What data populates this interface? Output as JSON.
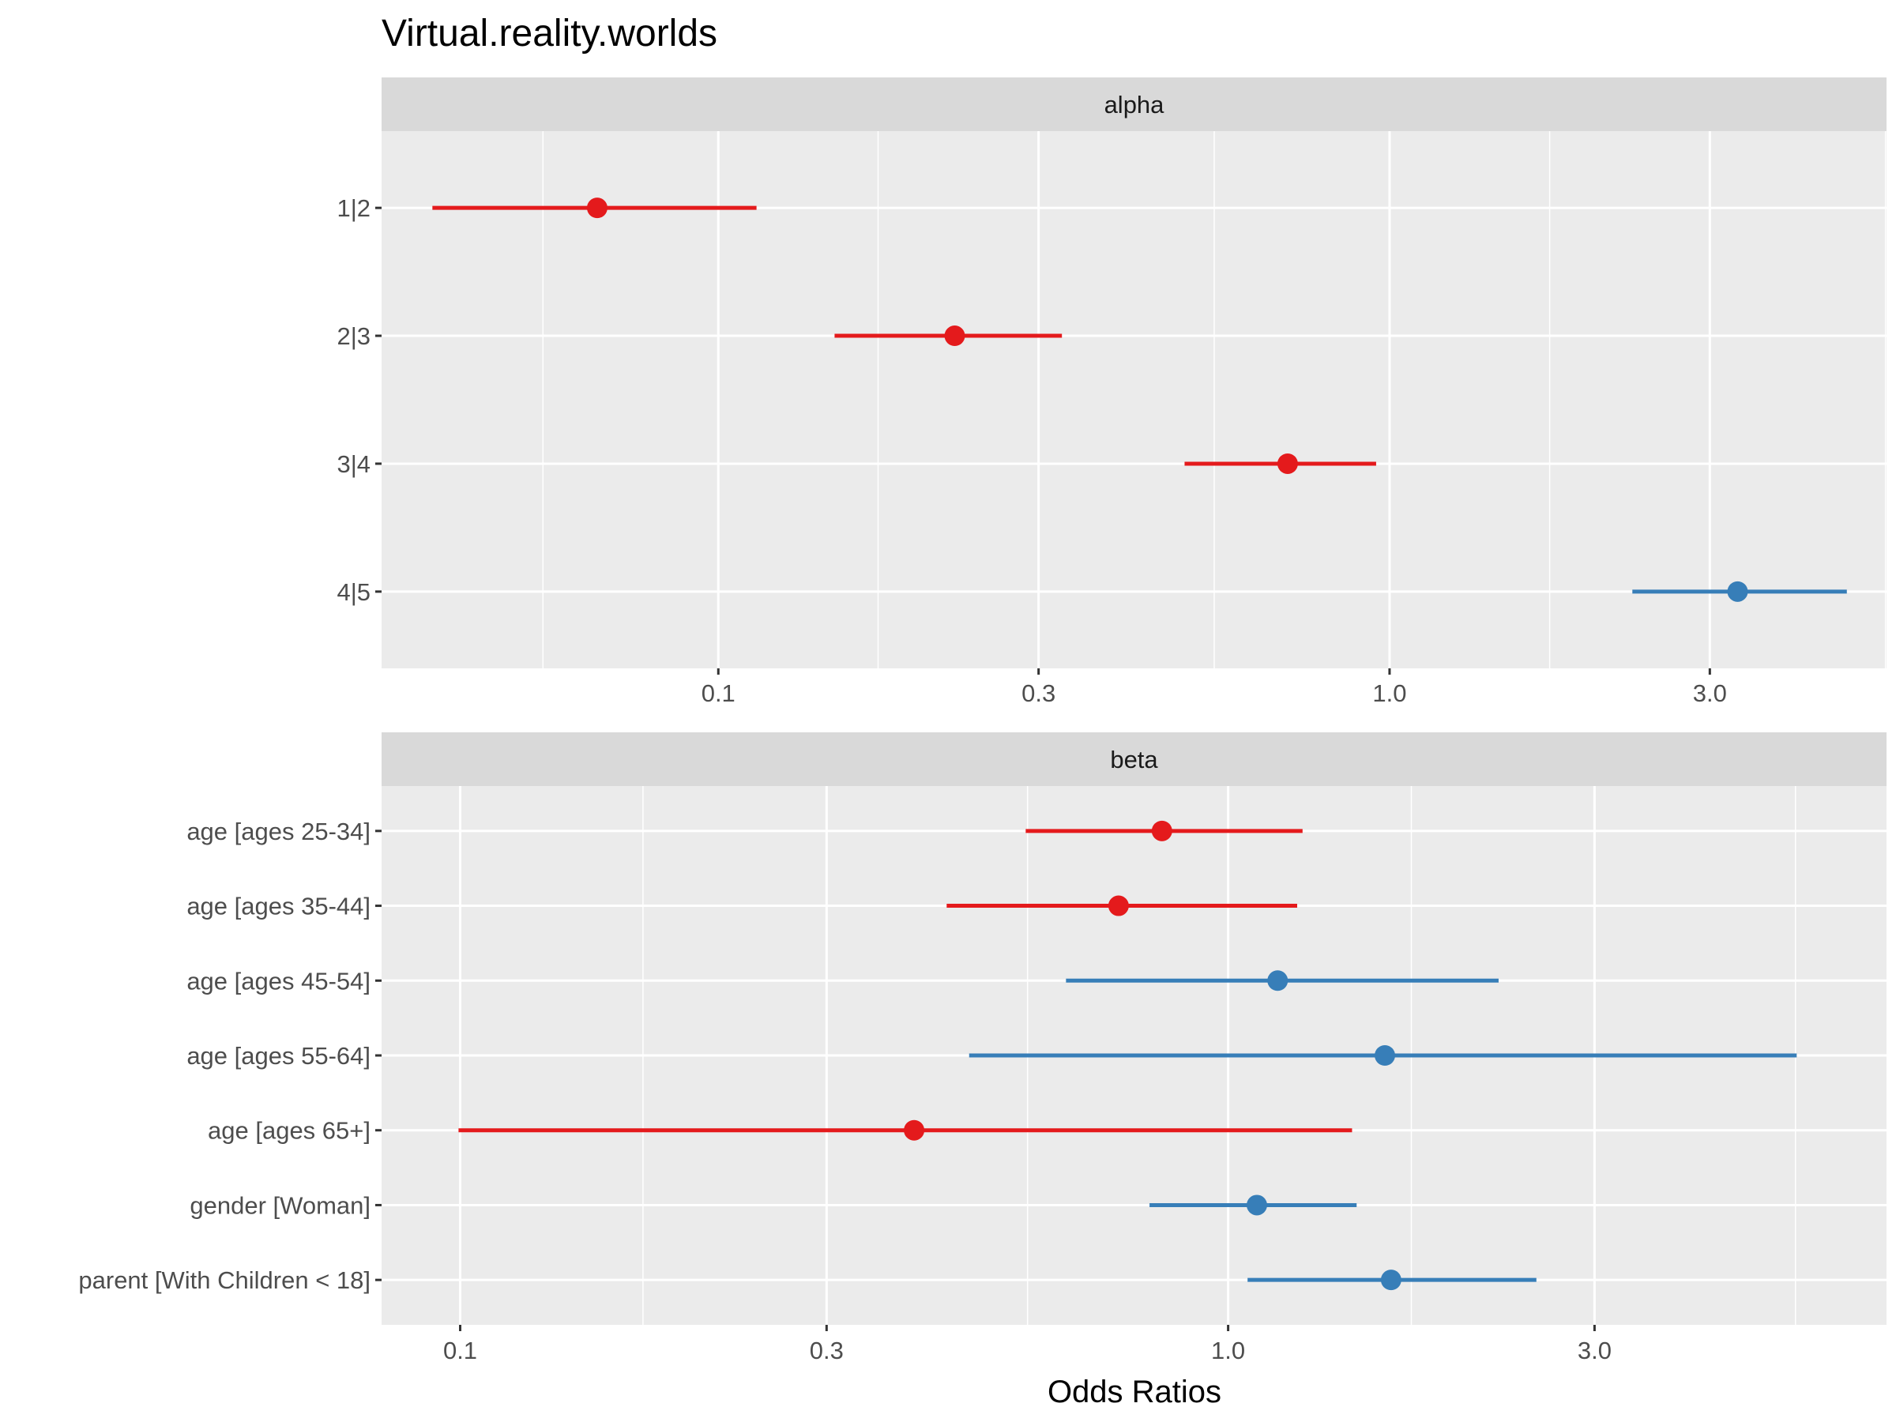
{
  "chart_data": {
    "type": "scatter",
    "subtype": "forest-plot",
    "title": "Virtual.reality.worlds",
    "xlabel": "Odds Ratios",
    "ylabel": "",
    "x_scale": "log10",
    "grid": true,
    "legend": "none",
    "colors": {
      "below_one": "#E41A1C",
      "above_one": "#377EB8"
    },
    "panels": [
      {
        "name": "alpha",
        "xlim": [
          0.0315,
          5.5
        ],
        "xticks": [
          0.1,
          0.3,
          1.0,
          3.0
        ],
        "xtick_labels": [
          "0.1",
          "0.3",
          "1.0",
          "3.0"
        ],
        "x_minor_grid": [
          0.0548,
          0.173,
          0.548,
          1.732,
          5.48
        ],
        "terms": [
          {
            "label": "1|2",
            "estimate": 0.066,
            "conf_low": 0.0375,
            "conf_high": 0.114
          },
          {
            "label": "2|3",
            "estimate": 0.225,
            "conf_low": 0.149,
            "conf_high": 0.325
          },
          {
            "label": "3|4",
            "estimate": 0.705,
            "conf_low": 0.495,
            "conf_high": 0.955
          },
          {
            "label": "4|5",
            "estimate": 3.3,
            "conf_low": 2.3,
            "conf_high": 4.8
          }
        ]
      },
      {
        "name": "beta",
        "xlim": [
          0.079,
          7.2
        ],
        "xticks": [
          0.1,
          0.3,
          1.0,
          3.0
        ],
        "xtick_labels": [
          "0.1",
          "0.3",
          "1.0",
          "3.0"
        ],
        "x_minor_grid": [
          0.173,
          0.548,
          1.732,
          5.48
        ],
        "terms": [
          {
            "label": "age [ages 25-34]",
            "estimate": 0.82,
            "conf_low": 0.545,
            "conf_high": 1.25
          },
          {
            "label": "age [ages 35-44]",
            "estimate": 0.72,
            "conf_low": 0.43,
            "conf_high": 1.23
          },
          {
            "label": "age [ages 45-54]",
            "estimate": 1.16,
            "conf_low": 0.615,
            "conf_high": 2.25
          },
          {
            "label": "age [ages 55-64]",
            "estimate": 1.6,
            "conf_low": 0.46,
            "conf_high": 5.5
          },
          {
            "label": "age [ages 65+]",
            "estimate": 0.39,
            "conf_low": 0.0995,
            "conf_high": 1.45
          },
          {
            "label": "gender [Woman]",
            "estimate": 1.09,
            "conf_low": 0.79,
            "conf_high": 1.47
          },
          {
            "label": "parent [With Children < 18]",
            "estimate": 1.63,
            "conf_low": 1.06,
            "conf_high": 2.52
          }
        ]
      }
    ]
  }
}
